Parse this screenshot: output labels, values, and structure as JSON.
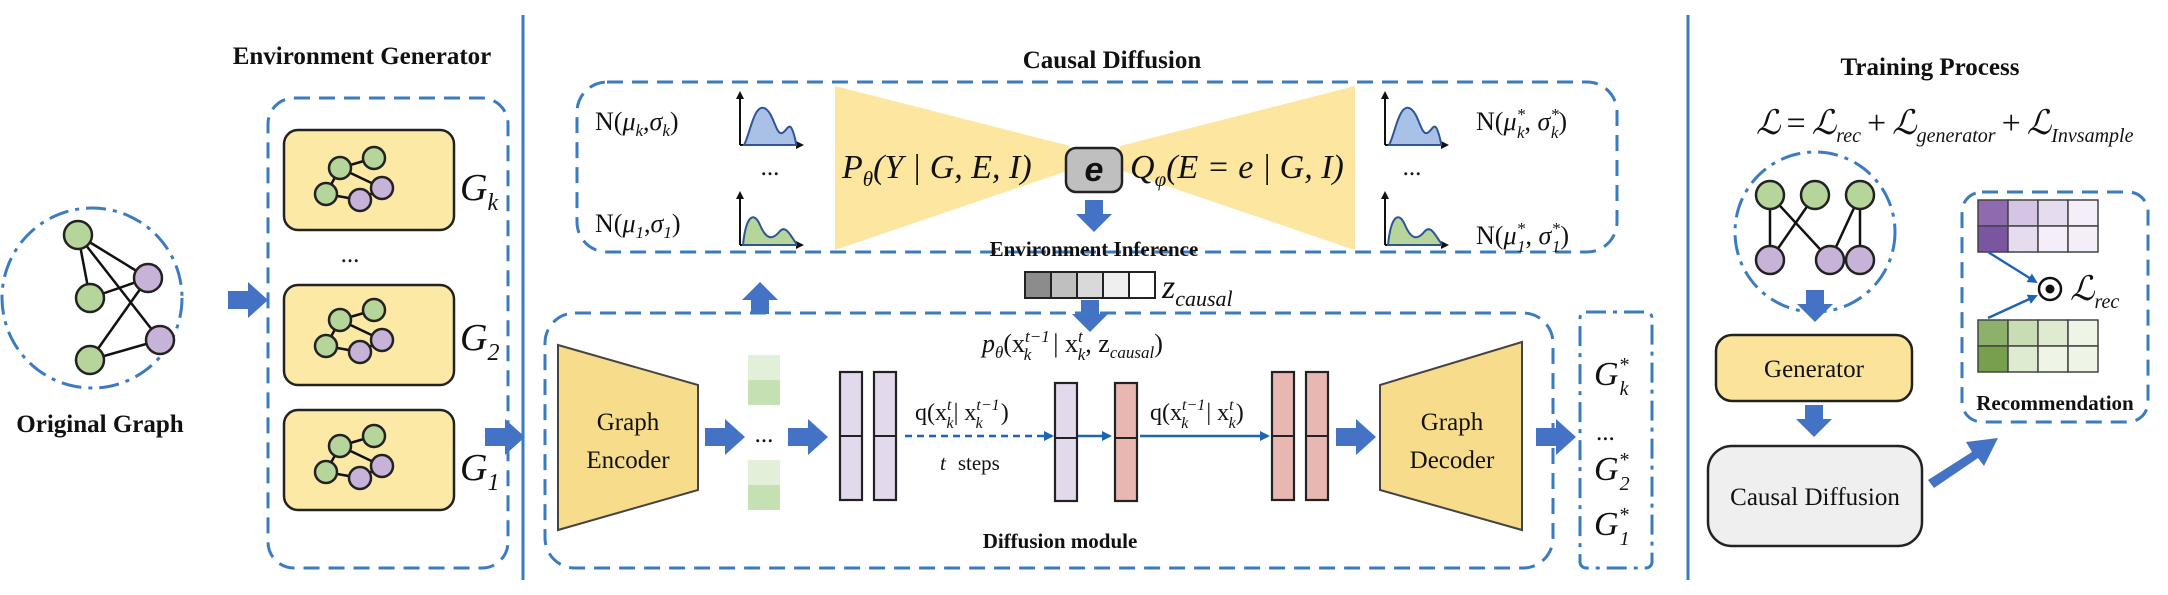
{
  "colors": {
    "accent_blue": "#3B7BBF",
    "arrow_blue": "#4472C4",
    "node_green": "#B5D59B",
    "node_purple": "#C6B3D7",
    "yellow": "#F7DC8C",
    "pink": "#E9B7B1"
  },
  "env": {
    "title": "Environment Generator",
    "original_label": "Original Graph",
    "graphs": [
      {
        "base": "G",
        "sub": "k"
      },
      {
        "base": "G",
        "sub": "2"
      },
      {
        "base": "G",
        "sub": "1"
      }
    ],
    "ellipsis": "..."
  },
  "causal": {
    "title": "Causal Diffusion",
    "dist_left": [
      {
        "n": "N(",
        "mu": "μ",
        "mu_sub": "k",
        ",": ",",
        "sig": "σ",
        "sig_sub": "k",
        ")": ")"
      },
      {
        "n": "N(",
        "mu": "μ",
        "mu_sub": "1",
        ",": ",",
        "sig": "σ",
        "sig_sub": "1",
        ")": ")"
      }
    ],
    "dist_right": [
      {
        "n": "N(",
        "mu": "μ",
        "mu_sub": "k",
        "mu_sup": "*",
        "sig": "σ",
        "sig_sub": "k",
        "sig_sup": "*"
      },
      {
        "n": "N(",
        "mu": "μ",
        "mu_sub": "1",
        "mu_sup": "*",
        "sig": "σ",
        "sig_sub": "1",
        "sig_sup": "*"
      }
    ],
    "ellipsis": "...",
    "p_theta": "P",
    "p_theta_sub": "θ",
    "p_theta_args": "(Y | G, E, I)",
    "e_symbol": "e",
    "q_phi": "Q",
    "q_phi_sub": "φ",
    "q_phi_args": "(E = e | G, I)",
    "env_inference": "Environment Inference",
    "z_label": "z",
    "z_sub": "causal"
  },
  "diffusion": {
    "encoder_label_1": "Graph",
    "encoder_label_2": "Encoder",
    "decoder_label_1": "Graph",
    "decoder_label_2": "Decoder",
    "ellipsis": "...",
    "p_formula": "p",
    "p_formula_sub": "θ",
    "p_formula_args": "(x",
    "p_formula_rest": "| x",
    "p_formula_tail": ", z",
    "p_formula_z_sub": "causal",
    "q_fwd": "q(x",
    "q_fwd_rest": "| x",
    "q_rev": "q(x",
    "q_rev_rest": "| x",
    "t_steps_t": "t",
    "t_steps": "steps",
    "module_label": "Diffusion module",
    "outputs": [
      {
        "base": "G",
        "sub": "k",
        "sup": "*"
      },
      {
        "base": "G",
        "sub": "2",
        "sup": "*"
      },
      {
        "base": "G",
        "sub": "1",
        "sup": "*"
      }
    ],
    "out_ellipsis": "..."
  },
  "training": {
    "title": "Training Process",
    "loss_L": "ℒ",
    "loss_eq": "=",
    "loss_plus": "+",
    "loss_terms": [
      "rec",
      "generator",
      "Invsample"
    ],
    "generator_label": "Generator",
    "causal_label": "Causal Diffusion",
    "rec_loss_L": "ℒ",
    "rec_loss_sub": "rec",
    "recommendation": "Recommendation"
  }
}
